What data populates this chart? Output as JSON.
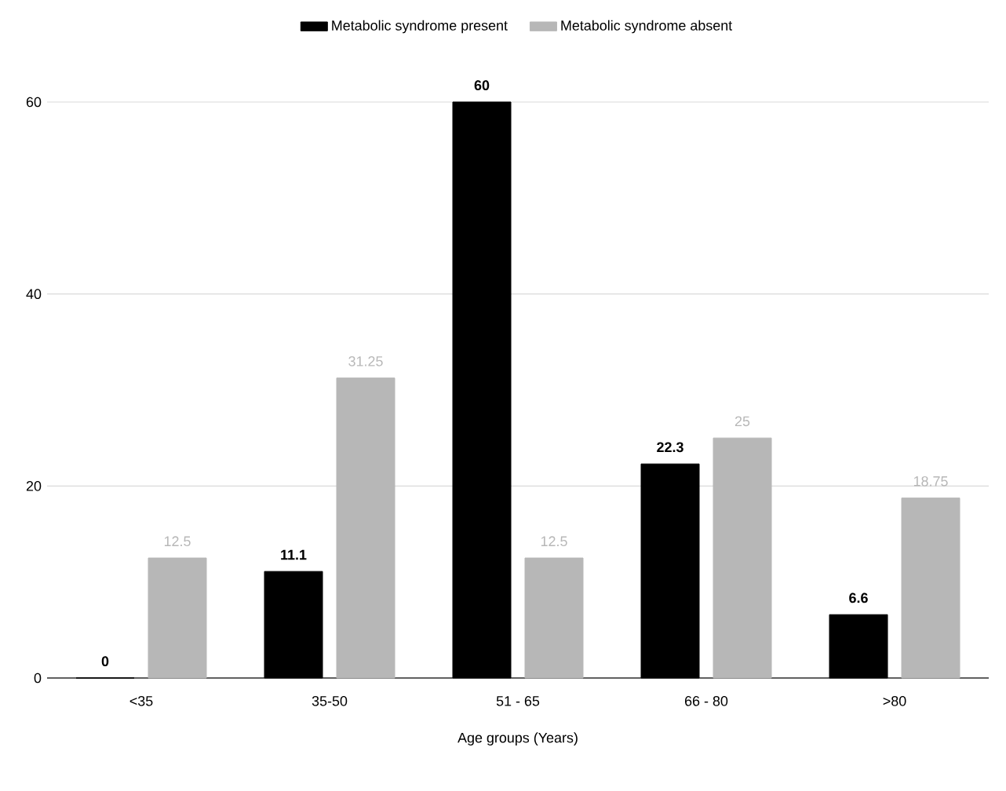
{
  "chart_data": {
    "type": "bar",
    "xlabel": "Age groups (Years)",
    "categories": [
      "<35",
      "35-50",
      "51 - 65",
      "66 - 80",
      ">80"
    ],
    "series": [
      {
        "name": "Metabolic syndrome present",
        "color": "#000000",
        "values": [
          0,
          11.1,
          60,
          22.3,
          6.6
        ],
        "value_labels": [
          "0",
          "11.1",
          "60",
          "22.3",
          "6.6"
        ]
      },
      {
        "name": "Metabolic syndrome absent",
        "color": "#b7b7b7",
        "values": [
          12.5,
          31.25,
          12.5,
          25,
          18.75
        ],
        "value_labels": [
          "12.5",
          "31.25",
          "12.5",
          "25",
          "18.75"
        ]
      }
    ],
    "ylim": [
      0,
      60
    ],
    "yticks": [
      0,
      20,
      40,
      60
    ],
    "grid": "y",
    "legend": "top"
  }
}
